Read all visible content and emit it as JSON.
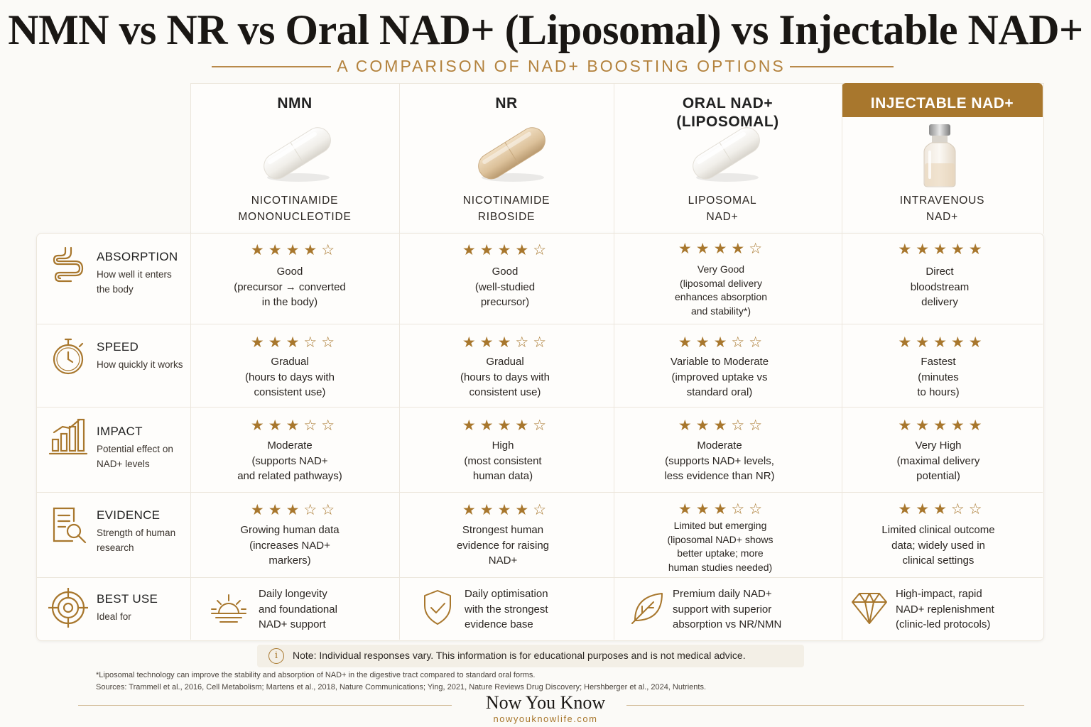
{
  "title": "NMN vs NR vs Oral NAD+ (Liposomal) vs Injectable NAD+",
  "subtitle": "A COMPARISON OF NAD+ BOOSTING OPTIONS",
  "colors": {
    "accent": "#a8772d",
    "text": "#2b2622",
    "background": "#fbfaf7",
    "border": "#ece6dc"
  },
  "columns": [
    {
      "header": "NMN",
      "sub1": "NICOTINAMIDE",
      "sub2": "MONONUCLEOTIDE",
      "icon": "white-capsule-icon"
    },
    {
      "header": "NR",
      "sub1": "NICOTINAMIDE",
      "sub2": "RIBOSIDE",
      "icon": "beige-capsule-icon"
    },
    {
      "header": "ORAL NAD+\n(LIPOSOMAL)",
      "sub1": "LIPOSOMAL",
      "sub2": "NAD+",
      "icon": "white-capsule-icon"
    },
    {
      "header": "INJECTABLE NAD+",
      "sub1": "INTRAVENOUS",
      "sub2": "NAD+",
      "icon": "vial-icon"
    }
  ],
  "rows": [
    {
      "title": "ABSORPTION",
      "desc": "How well it enters the body",
      "icon": "intestine-icon",
      "cells": [
        {
          "rating": 4,
          "stars": "★★★★☆",
          "text": "Good\n(precursor → converted\nin the body)"
        },
        {
          "rating": 4,
          "stars": "★★★★☆",
          "text": "Good\n(well-studied\nprecursor)"
        },
        {
          "rating": 4,
          "stars": "★★★★☆",
          "text": "Very Good\n(liposomal delivery\nenhances absorption\nand stability*)"
        },
        {
          "rating": 5,
          "stars": "★★★★★",
          "text": "Direct\nbloodstream\ndelivery"
        }
      ]
    },
    {
      "title": "SPEED",
      "desc": "How quickly it works",
      "icon": "stopwatch-icon",
      "cells": [
        {
          "rating": 3,
          "stars": "★★★☆☆",
          "text": "Gradual\n(hours to days with\nconsistent use)"
        },
        {
          "rating": 3,
          "stars": "★★★☆☆",
          "text": "Gradual\n(hours to days with\nconsistent use)"
        },
        {
          "rating": 3,
          "stars": "★★★☆☆",
          "text": "Variable to Moderate\n(improved uptake vs\nstandard oral)"
        },
        {
          "rating": 5,
          "stars": "★★★★★",
          "text": "Fastest\n(minutes\nto hours)"
        }
      ]
    },
    {
      "title": "IMPACT",
      "desc": "Potential effect on NAD+ levels",
      "icon": "bar-chart-icon",
      "cells": [
        {
          "rating": 3,
          "stars": "★★★☆☆",
          "text": "Moderate\n(supports NAD+\nand related pathways)"
        },
        {
          "rating": 4,
          "stars": "★★★★☆",
          "text": "High\n(most consistent\nhuman data)"
        },
        {
          "rating": 3,
          "stars": "★★★☆☆",
          "text": "Moderate\n(supports NAD+ levels,\nless evidence than NR)"
        },
        {
          "rating": 5,
          "stars": "★★★★★",
          "text": "Very High\n(maximal delivery\npotential)"
        }
      ]
    },
    {
      "title": "EVIDENCE",
      "desc": "Strength of human research",
      "icon": "document-search-icon",
      "cells": [
        {
          "rating": 3,
          "stars": "★★★☆☆",
          "text": "Growing human data\n(increases NAD+\nmarkers)"
        },
        {
          "rating": 4,
          "stars": "★★★★☆",
          "text": "Strongest human\nevidence for raising\nNAD+"
        },
        {
          "rating": 3,
          "stars": "★★★☆☆",
          "text": "Limited but emerging\n(liposomal NAD+ shows\nbetter uptake; more\nhuman studies needed)"
        },
        {
          "rating": 3,
          "stars": "★★★☆☆",
          "text": "Limited clinical outcome\ndata; widely used in\nclinical settings"
        }
      ]
    },
    {
      "title": "BEST USE",
      "desc": "Ideal for",
      "icon": "target-icon",
      "cells": [
        {
          "icon": "sunrise-icon",
          "text": "Daily longevity\nand foundational\nNAD+ support"
        },
        {
          "icon": "shield-check-icon",
          "text": "Daily optimisation\nwith the strongest\nevidence base"
        },
        {
          "icon": "leaf-icon",
          "text": "Premium daily NAD+\nsupport with superior\nabsorption vs NR/NMN"
        },
        {
          "icon": "diamond-icon",
          "text": "High-impact, rapid\nNAD+ replenishment\n(clinic-led protocols)"
        }
      ]
    }
  ],
  "note": "Note: Individual responses vary. This information is for educational purposes and is not medical advice.",
  "footnote": "*Liposomal technology can improve the stability and absorption of NAD+ in the digestive tract compared to standard oral forms.",
  "sources": "Sources: Trammell et al., 2016, Cell Metabolism; Martens et al., 2018, Nature Communications; Ying, 2021, Nature Reviews Drug Discovery; Hershberger et al., 2024, Nutrients.",
  "brand": "Now You Know",
  "site": "nowyouknowlife.com"
}
